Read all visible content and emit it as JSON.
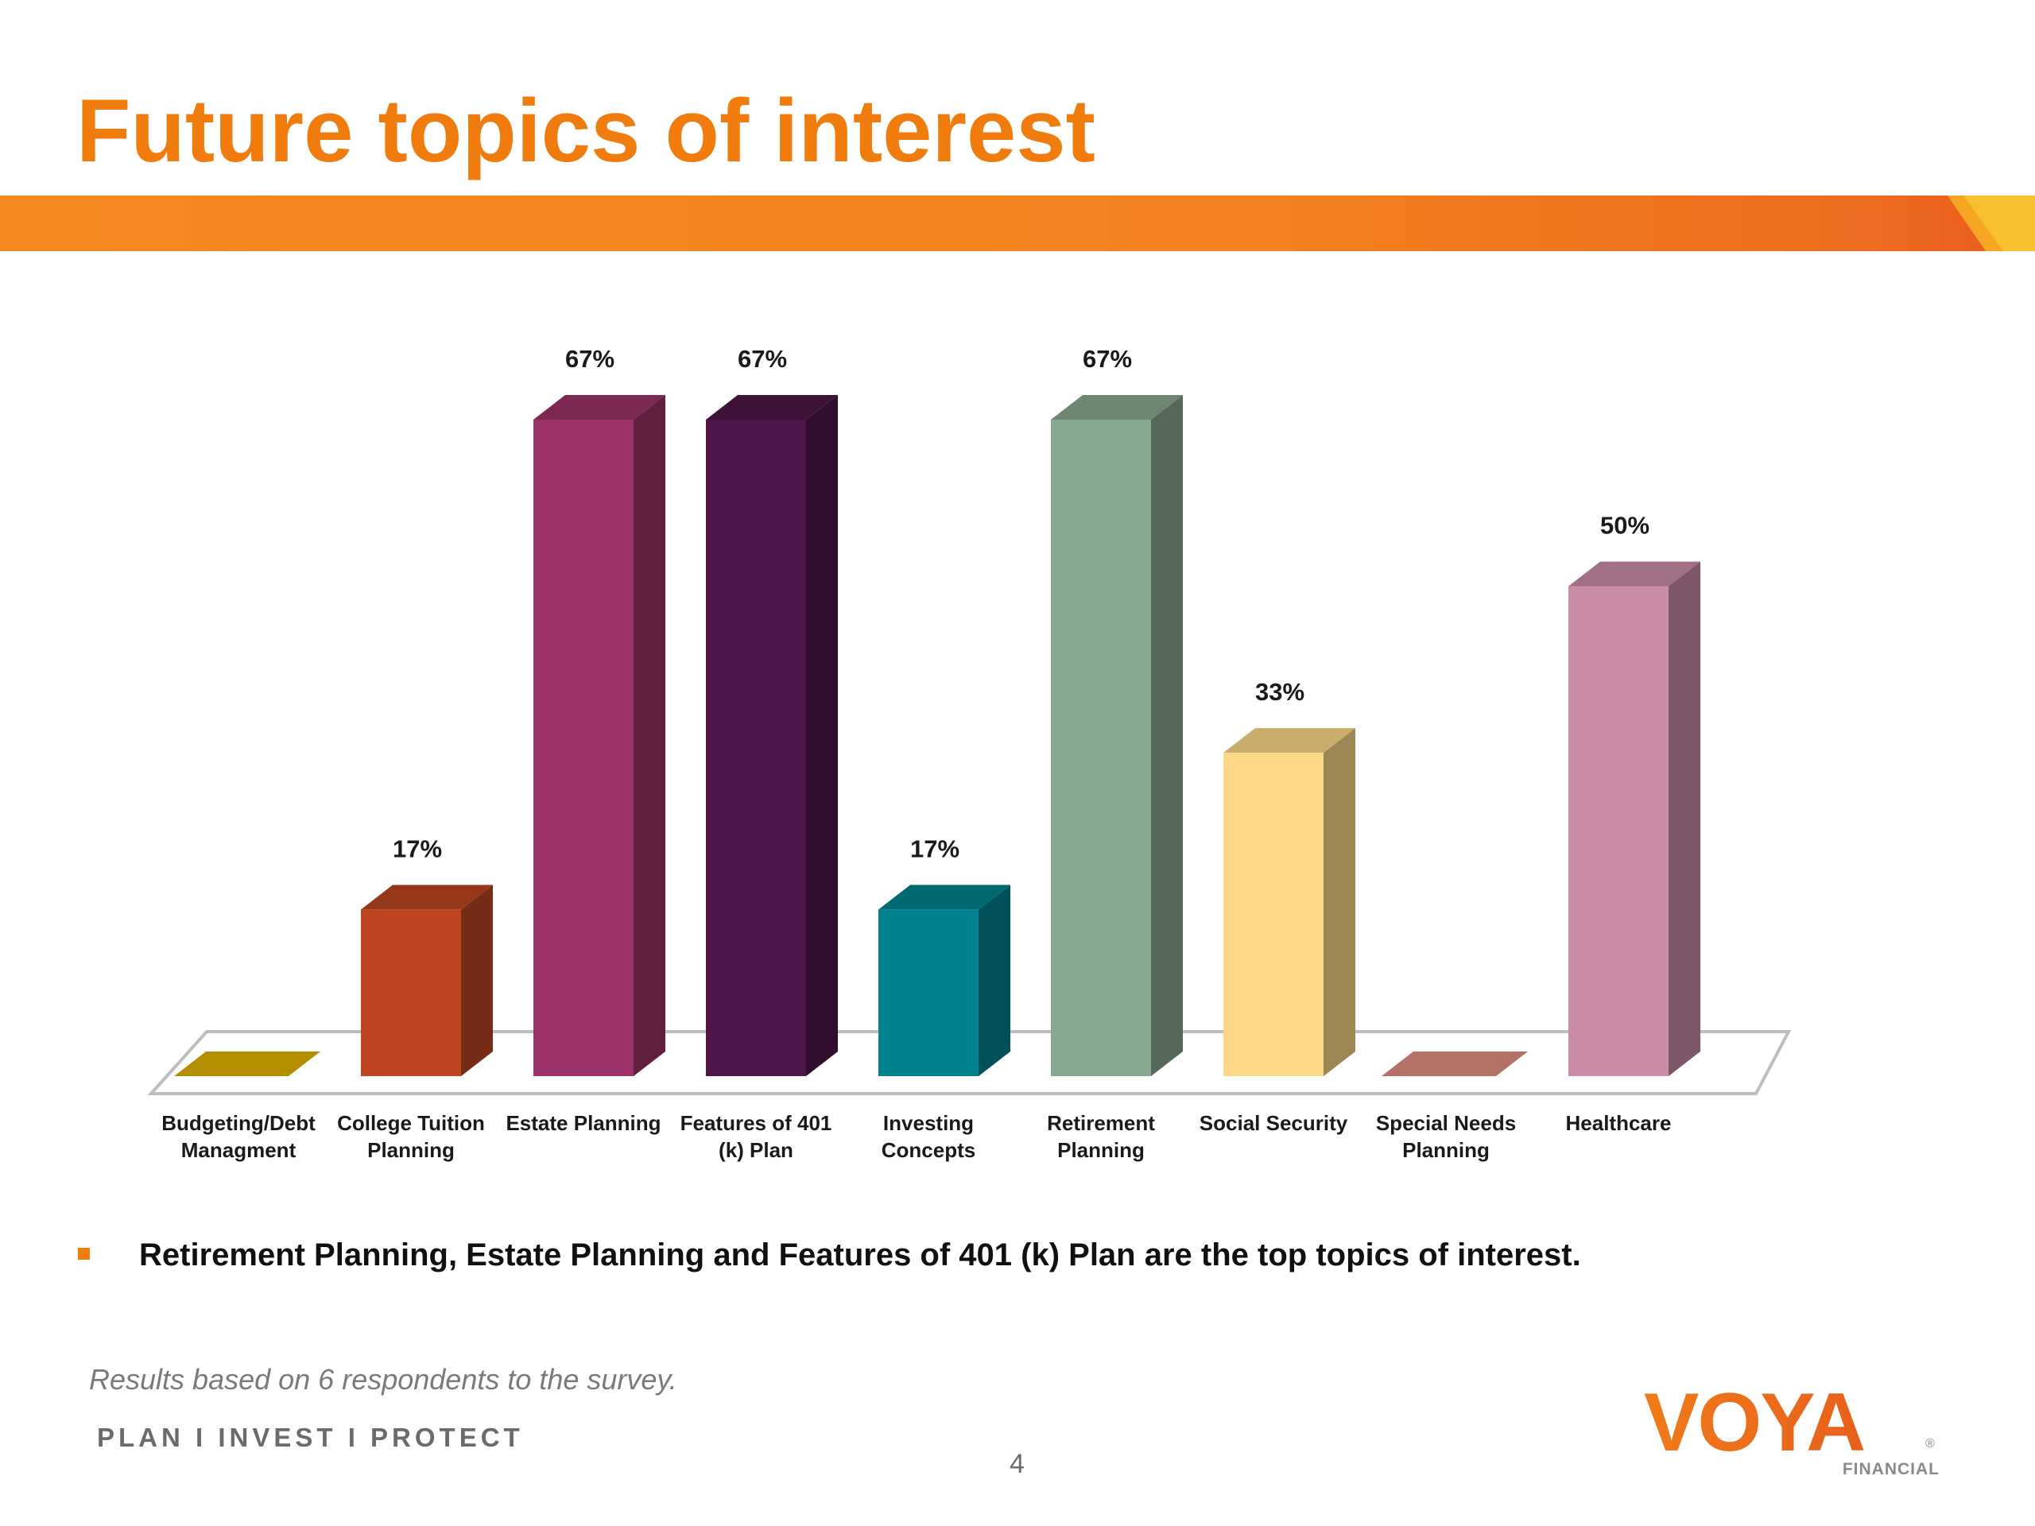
{
  "slide": {
    "title": "Future topics of interest",
    "bullet": "Retirement Planning, Estate Planning and Features of 401 (k) Plan are the top topics of interest.",
    "footnote": "Results based on 6 respondents to the survey.",
    "tagline": "PLAN  I  INVEST  I  PROTECT",
    "page_number": "4",
    "logo": {
      "wordmark": "VOYA",
      "subtext": "FINANCIAL",
      "registered": "®"
    },
    "colors": {
      "accent": "#F07C0E",
      "banner": "#F3821E"
    }
  },
  "chart_data": {
    "type": "bar",
    "style": "3d-column",
    "title": "",
    "xlabel": "",
    "ylabel": "",
    "ylim": [
      0,
      67
    ],
    "grid": false,
    "legend": "none",
    "categories": [
      [
        "Budgeting/Debt",
        "Managment"
      ],
      [
        "College Tuition",
        "Planning"
      ],
      [
        "Estate Planning"
      ],
      [
        "Features of 401",
        "(k) Plan"
      ],
      [
        "Investing",
        "Concepts"
      ],
      [
        "Retirement",
        "Planning"
      ],
      [
        "Social Security"
      ],
      [
        "Special Needs",
        "Planning"
      ],
      [
        "Healthcare"
      ]
    ],
    "values": [
      0,
      17,
      67,
      67,
      17,
      67,
      33,
      0,
      50
    ],
    "labels": [
      "",
      "17%",
      "67%",
      "67%",
      "17%",
      "67%",
      "33%",
      "",
      "50%"
    ],
    "colors": [
      "#B38F00",
      "#BC4520",
      "#9C3268",
      "#4F1649",
      "#00838F",
      "#88A990",
      "#FCD886",
      "#B47166",
      "#CA8CA6"
    ]
  }
}
